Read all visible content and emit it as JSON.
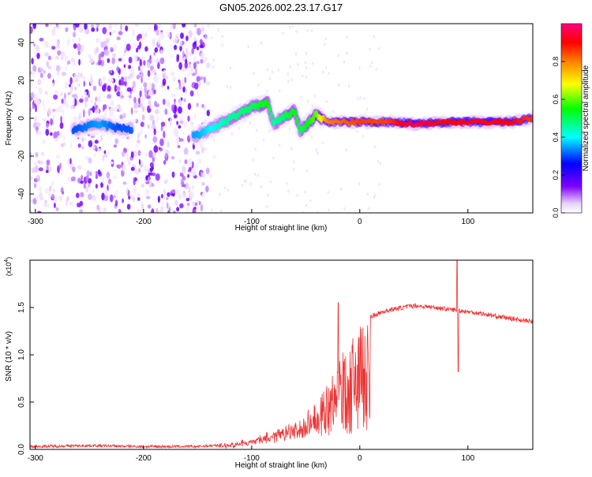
{
  "chart_data": [
    {
      "type": "heatmap",
      "title": "GN05.2026.002.23.17.G17",
      "xlabel": "Height of straight line (km)",
      "ylabel": "Frequency (Hz)",
      "xlim": [
        -305,
        160
      ],
      "ylim": [
        -50,
        50
      ],
      "xticks": [
        -300,
        -200,
        -100,
        0,
        100
      ],
      "xtick_labels": [
        "-300",
        "-200",
        "-100",
        "0",
        "100"
      ],
      "yticks": [
        -40,
        -20,
        0,
        20,
        40
      ],
      "ytick_labels": [
        "-40",
        "-20",
        "0",
        "20",
        "40"
      ],
      "colorbar": {
        "label": "Normalized spectral amplitude",
        "range": [
          0,
          1
        ],
        "ticks": [
          0.0,
          0.2,
          0.4,
          0.6,
          0.8
        ],
        "tick_labels": [
          "0.0",
          "0.2",
          "0.4",
          "0.6",
          "0.8"
        ],
        "colors": [
          "#ffffff",
          "#8000ff",
          "#0000ff",
          "#00ffff",
          "#00ff00",
          "#ffff00",
          "#ff8000",
          "#ff0000",
          "#ff0080"
        ]
      },
      "noise_region": {
        "x": [
          -305,
          -140
        ],
        "frequency": [
          -50,
          50
        ],
        "typical_amplitude": 0.1
      },
      "ridge": [
        {
          "x": -265,
          "y": -6,
          "amp": 0.3
        },
        {
          "x": -240,
          "y": -3,
          "amp": 0.35
        },
        {
          "x": -225,
          "y": -5,
          "amp": 0.3
        },
        {
          "x": -150,
          "y": -9,
          "amp": 0.35
        },
        {
          "x": -125,
          "y": -2,
          "amp": 0.45
        },
        {
          "x": -100,
          "y": 6,
          "amp": 0.5
        },
        {
          "x": -85,
          "y": 8,
          "amp": 0.55
        },
        {
          "x": -80,
          "y": -3,
          "amp": 0.45
        },
        {
          "x": -60,
          "y": 4,
          "amp": 0.55
        },
        {
          "x": -55,
          "y": -7,
          "amp": 0.5
        },
        {
          "x": -40,
          "y": 2,
          "amp": 0.6
        },
        {
          "x": -30,
          "y": -2,
          "amp": 0.8
        },
        {
          "x": 0,
          "y": -2,
          "amp": 0.85
        },
        {
          "x": 25,
          "y": -2,
          "amp": 0.85
        },
        {
          "x": 50,
          "y": -3,
          "amp": 0.95
        },
        {
          "x": 80,
          "y": -2,
          "amp": 0.9
        },
        {
          "x": 110,
          "y": -2,
          "amp": 0.92
        },
        {
          "x": 140,
          "y": -2,
          "amp": 0.9
        },
        {
          "x": 160,
          "y": 0,
          "amp": 0.85
        }
      ]
    },
    {
      "type": "line",
      "xlabel": "Height of straight line (km)",
      "ylabel": "SNR (10 * v/v)",
      "y_multiplier": "(x10",
      "y_multiplier_exp": "4",
      "y_multiplier_close": ")",
      "xlim": [
        -305,
        160
      ],
      "ylim": [
        0,
        2.0
      ],
      "xticks": [
        -300,
        -200,
        -100,
        0,
        100
      ],
      "xtick_labels": [
        "-300",
        "-200",
        "-100",
        "0",
        "100"
      ],
      "yticks": [
        0.0,
        0.5,
        1.0,
        1.5
      ],
      "ytick_labels": [
        "0.0",
        "0.5",
        "1.0",
        "1.5"
      ],
      "line_color": "#ee3333",
      "envelope": {
        "x": [
          -305,
          -250,
          -200,
          -150,
          -120,
          -100,
          -80,
          -60,
          -50,
          -40,
          -30,
          -20,
          -10,
          0,
          10,
          20,
          30,
          50,
          70,
          90,
          110,
          130,
          160
        ],
        "y": [
          0.03,
          0.04,
          0.03,
          0.03,
          0.05,
          0.1,
          0.2,
          0.3,
          0.38,
          0.5,
          0.7,
          0.95,
          1.15,
          1.3,
          1.4,
          1.45,
          1.48,
          1.52,
          1.5,
          1.47,
          1.44,
          1.4,
          1.35
        ]
      },
      "spikes": [
        {
          "x": -20,
          "y": 1.55
        },
        {
          "x": 90,
          "y": 2.0
        },
        {
          "x": 91,
          "y": 0.82
        }
      ]
    }
  ]
}
